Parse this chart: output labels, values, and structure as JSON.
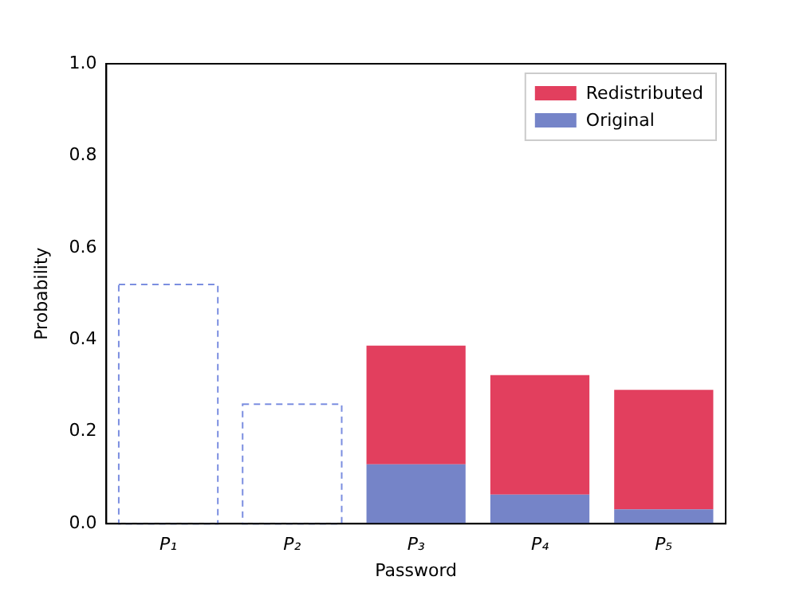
{
  "chart_data": {
    "type": "bar",
    "xlabel": "Password",
    "ylabel": "Probability",
    "categories": [
      "P₁",
      "P₂",
      "P₃",
      "P₄",
      "P₅"
    ],
    "stacked": true,
    "ylim": [
      0,
      1
    ],
    "yticks": [
      {
        "value": 0,
        "label": "0.0"
      },
      {
        "value": 0.2,
        "label": "0.2"
      },
      {
        "value": 0.4,
        "label": "0.4"
      },
      {
        "value": 0.6,
        "label": "0.6"
      },
      {
        "value": 0.8,
        "label": "0.8"
      },
      {
        "value": 1,
        "label": "1.0"
      }
    ],
    "legend": "top right",
    "grid": false,
    "series": [
      {
        "name": "Original",
        "color": "#7584c8",
        "values": [
          null,
          null,
          0.129,
          0.063,
          0.031
        ]
      },
      {
        "name": "Redistributed",
        "color": "#e23f5e",
        "values": [
          null,
          null,
          0.258,
          0.26,
          0.26
        ]
      },
      {
        "color": "#7b8ee0",
        "line_style": "dashed",
        "values": [
          0.52,
          0.26,
          null,
          null,
          null
        ]
      }
    ]
  }
}
